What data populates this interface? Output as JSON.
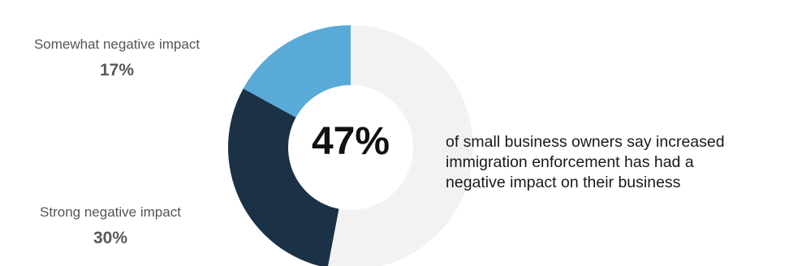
{
  "chart_data": {
    "type": "pie",
    "title": "",
    "center_label": "47%",
    "slices": [
      {
        "name": "Somewhat negative impact",
        "value": 17,
        "label": "17%",
        "color": "#5aaad8"
      },
      {
        "name": "Strong negative impact",
        "value": 30,
        "label": "30%",
        "color": "#1b3145"
      },
      {
        "name": "",
        "value": 53,
        "label": "",
        "color": "#f2f2f2"
      }
    ],
    "caption_lines": [
      "of small business owners say increased",
      "immigration enforcement has had a",
      "negative impact on their business"
    ]
  }
}
